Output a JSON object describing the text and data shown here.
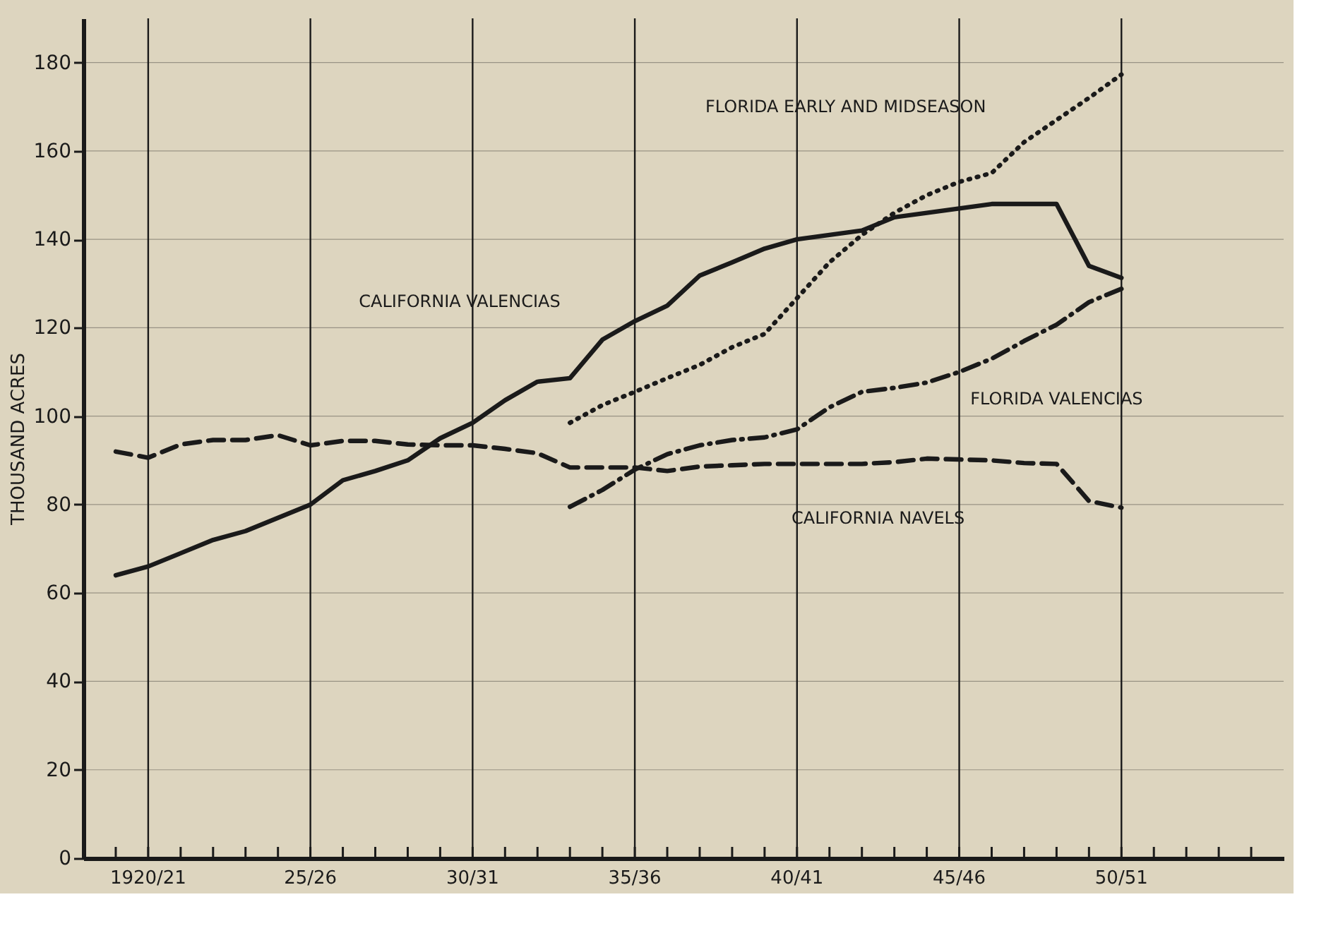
{
  "chart_data": {
    "type": "line",
    "ylabel": "THOUSAND ACRES",
    "categories": [
      null,
      "1920/21",
      null,
      null,
      null,
      null,
      "25/26",
      null,
      null,
      null,
      null,
      "30/31",
      null,
      null,
      null,
      null,
      "35/36",
      null,
      null,
      null,
      null,
      "40/41",
      null,
      null,
      null,
      null,
      "45/46",
      null,
      null,
      null,
      null,
      "50/51",
      null,
      null,
      null,
      null
    ],
    "series": [
      {
        "name": "CALIFORNIA VALENCIAS",
        "color": "#1a1a1a",
        "line_style": "solid",
        "values": [
          64,
          66,
          69,
          72,
          74,
          77,
          80,
          85.5,
          87.6,
          90,
          95,
          98.5,
          103.6,
          107.8,
          108.6,
          117.3,
          121.5,
          125,
          131.8,
          134.8,
          137.9,
          140,
          141,
          142,
          145,
          146,
          147,
          148,
          148,
          148,
          134,
          131.3,
          null,
          null,
          null,
          null
        ]
      },
      {
        "name": "CALIFORNIA NAVELS",
        "color": "#1a1a1a",
        "line_style": "dashed",
        "values": [
          92,
          90.6,
          93.6,
          94.6,
          94.6,
          95.7,
          93.4,
          94.4,
          94.4,
          93.6,
          93.4,
          93.4,
          92.6,
          91.6,
          88.4,
          88.4,
          88.4,
          87.6,
          88.6,
          88.9,
          89.2,
          89.2,
          89.2,
          89.2,
          89.6,
          90.4,
          90.2,
          90,
          89.4,
          89.2,
          80.8,
          79.3,
          null,
          null,
          null,
          null
        ]
      },
      {
        "name": "FLORIDA VALENCIAS",
        "color": "#1a1a1a",
        "line_style": "dashdot",
        "values": [
          null,
          null,
          null,
          null,
          null,
          null,
          null,
          null,
          null,
          null,
          null,
          null,
          null,
          null,
          79.5,
          83.3,
          87.9,
          91.4,
          93.4,
          94.6,
          95.2,
          97,
          102,
          105.5,
          106.4,
          107.6,
          110,
          113,
          117,
          120.7,
          125.8,
          128.8,
          null,
          null,
          null,
          null
        ]
      },
      {
        "name": "FLORIDA EARLY AND MIDSEASON",
        "color": "#1a1a1a",
        "line_style": "dotted",
        "values": [
          null,
          null,
          null,
          null,
          null,
          null,
          null,
          null,
          null,
          null,
          null,
          null,
          null,
          null,
          98.5,
          102.5,
          105.5,
          108.6,
          111.6,
          115.6,
          118.6,
          126.7,
          134.8,
          141,
          146,
          150,
          153,
          155,
          162,
          167,
          172,
          177.3,
          null,
          null,
          null,
          null
        ]
      }
    ],
    "ylim": [
      0,
      190
    ],
    "yticks": [
      0,
      20,
      40,
      60,
      80,
      100,
      120,
      140,
      160,
      180
    ],
    "grid": true,
    "legend": false
  }
}
